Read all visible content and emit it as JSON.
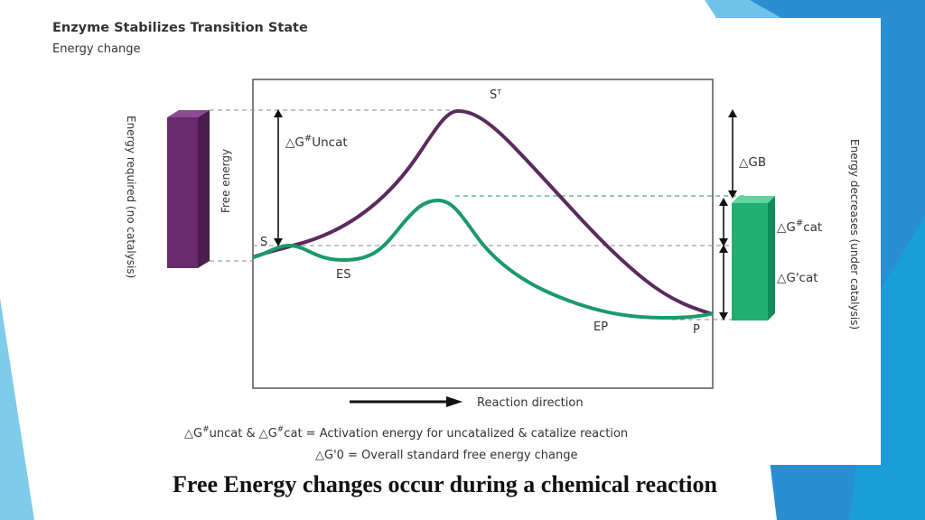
{
  "figure": {
    "title": "Enzyme Stabilizes Transition State",
    "subtitle": "Energy change",
    "labels": {
      "transition_state": "Sᵀ",
      "substrate": "S",
      "es": "ES",
      "ep": "EP",
      "product": "P",
      "dg_uncat": "△G",
      "dg_uncat_sup": "#",
      "dg_uncat_rest": "Uncat",
      "dgb": "△GB",
      "dg_cat": "△G",
      "dg_cat_sup": "#",
      "dg_cat_rest": "cat",
      "dg_prime_cat": "△G'cat",
      "free_energy": "Free energy",
      "energy_required": "Energy required (no catalysis)",
      "energy_decreases": "Energy decreases (under catalysis)",
      "reaction_direction": "Reaction direction"
    },
    "legend": [
      {
        "a": "△G",
        "a_sup": "#",
        "a_rest": "uncat & △G",
        "b_sup": "#",
        "b_rest": "cat = Activation energy for uncatalized & catalize reaction"
      },
      {
        "text": "△G'0 = Overall standard free energy change"
      }
    ],
    "colors": {
      "uncatalyzed_curve": "#5b2a5e",
      "catalyzed_curve": "#1a9a6a",
      "left_bar": "#6a2a6e",
      "right_bar": "#1fb070",
      "accent_blue": "#1a9ed8"
    }
  },
  "caption": "Free Energy changes occur during a chemical reaction"
}
